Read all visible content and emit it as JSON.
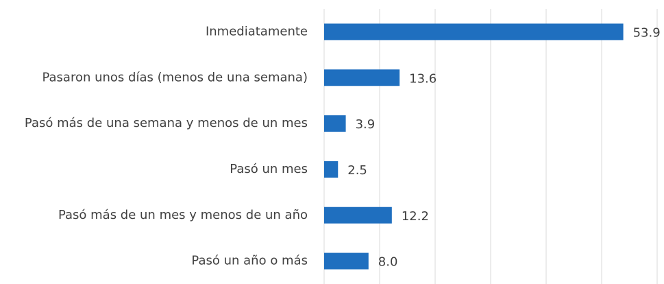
{
  "chart_data": {
    "type": "bar",
    "orientation": "horizontal",
    "categories": [
      "Inmediatamente",
      "Pasaron unos días (menos de una semana)",
      "Pasó más de una semana y menos de un mes",
      "Pasó un mes",
      "Pasó más de un mes y menos de un año",
      "Pasó un año o más"
    ],
    "values": [
      53.9,
      13.6,
      3.9,
      2.5,
      12.2,
      8.0
    ],
    "value_labels": [
      "53.9",
      "13.6",
      "3.9",
      "2.5",
      "12.2",
      "8.0"
    ],
    "color": "#1f6fbf",
    "xlim": [
      0,
      60
    ],
    "xticks": [
      0,
      10,
      20,
      30,
      40,
      50,
      60
    ],
    "grid": true
  }
}
